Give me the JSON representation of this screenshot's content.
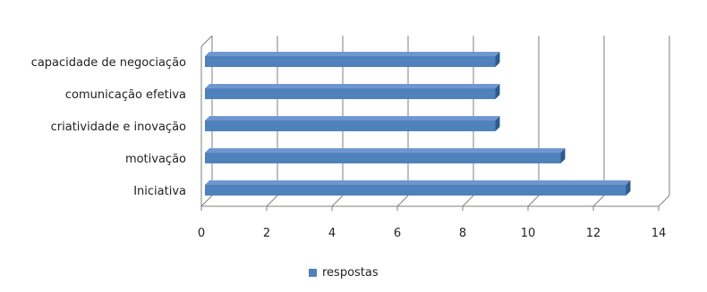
{
  "chart_data": {
    "type": "bar",
    "orientation": "horizontal",
    "categories": [
      "capacidade de negociação",
      "comunicação efetiva",
      "criatividade e inovação",
      "motivação",
      "Iniciativa"
    ],
    "series": [
      {
        "name": "respostas",
        "values": [
          9,
          9,
          9,
          11,
          13
        ]
      }
    ],
    "xlim": [
      0,
      14
    ],
    "x_ticks": [
      "0",
      "2",
      "4",
      "6",
      "8",
      "10",
      "12",
      "14"
    ],
    "grid": true,
    "legend_position": "bottom",
    "bar_color": "#4F81BD"
  }
}
